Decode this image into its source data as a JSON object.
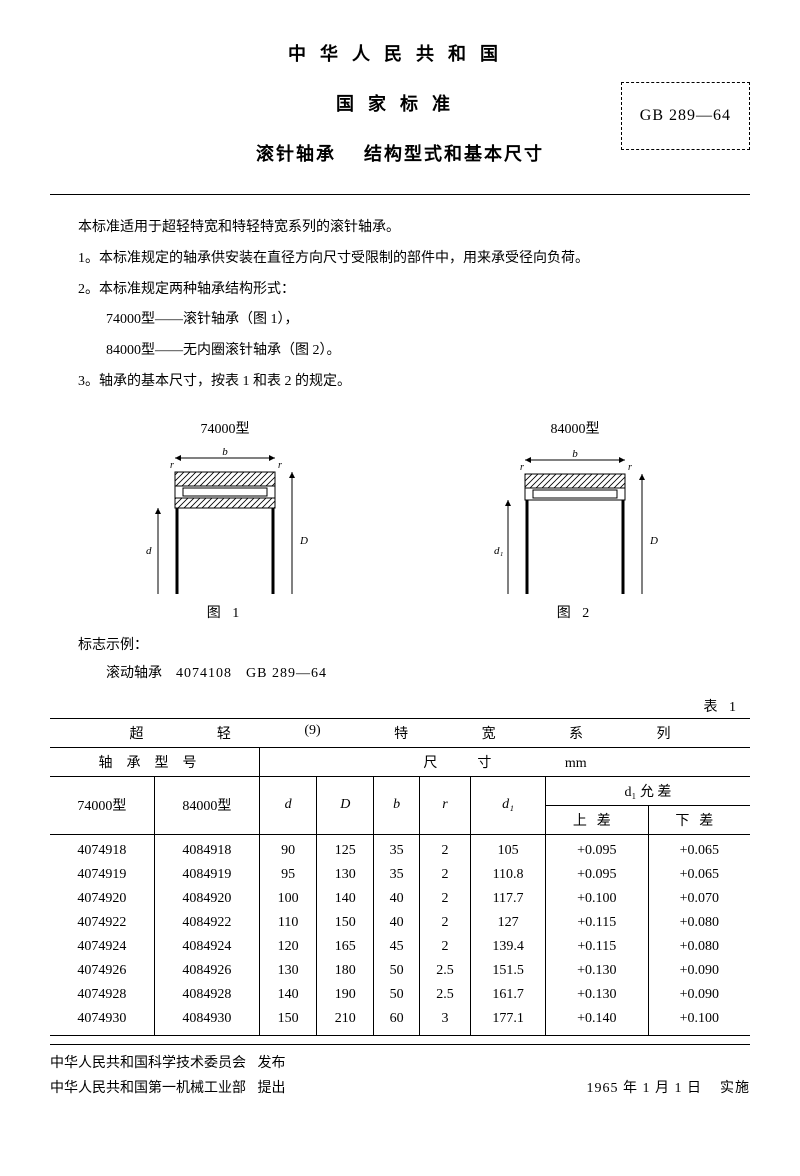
{
  "header": {
    "country": "中华人民共和国",
    "std": "国家标准",
    "title_a": "滚针轴承",
    "title_b": "结构型式和基本尺寸",
    "code": "GB 289—64"
  },
  "intro": {
    "applies": "本标准适用于超轻特宽和特轻特宽系列的滚针轴承。",
    "p1": "1。本标准规定的轴承供安装在直径方向尺寸受限制的部件中，用来承受径向负荷。",
    "p2": "2。本标准规定两种轴承结构形式：",
    "p2a": "74000型——滚针轴承（图 1），",
    "p2b": "84000型——无内圈滚针轴承（图 2）。",
    "p3": "3。轴承的基本尺寸，按表 1 和表 2 的规定。"
  },
  "figures": {
    "left_title": "74000型",
    "right_title": "84000型",
    "left_caption": "图 1",
    "right_caption": "图 2",
    "hatch_color": "#000",
    "line_color": "#000"
  },
  "example": {
    "label": "标志示例：",
    "prefix": "滚动轴承",
    "code": "4074108",
    "std": "GB 289—64"
  },
  "table1": {
    "label": "表 1",
    "super_header_parts": [
      "超",
      "轻",
      "(9)",
      "特",
      "宽",
      "系",
      "列"
    ],
    "col_group_a": "轴承型号",
    "col_group_b": "尺寸",
    "col_group_b_unit": "mm",
    "cols": {
      "t74": "74000型",
      "t84": "84000型",
      "d": "d",
      "D": "D",
      "b": "b",
      "r": "r",
      "d1": "d₁",
      "d1tol": "d₁ 允 差",
      "upper": "上差",
      "lower": "下差"
    },
    "rows": [
      {
        "t74": "4074918",
        "t84": "4084918",
        "d": "90",
        "D": "125",
        "b": "35",
        "r": "2",
        "d1": "105",
        "up": "+0.095",
        "lo": "+0.065"
      },
      {
        "t74": "4074919",
        "t84": "4084919",
        "d": "95",
        "D": "130",
        "b": "35",
        "r": "2",
        "d1": "110.8",
        "up": "+0.095",
        "lo": "+0.065"
      },
      {
        "t74": "4074920",
        "t84": "4084920",
        "d": "100",
        "D": "140",
        "b": "40",
        "r": "2",
        "d1": "117.7",
        "up": "+0.100",
        "lo": "+0.070"
      },
      {
        "t74": "4074922",
        "t84": "4084922",
        "d": "110",
        "D": "150",
        "b": "40",
        "r": "2",
        "d1": "127",
        "up": "+0.115",
        "lo": "+0.080"
      },
      {
        "t74": "4074924",
        "t84": "4084924",
        "d": "120",
        "D": "165",
        "b": "45",
        "r": "2",
        "d1": "139.4",
        "up": "+0.115",
        "lo": "+0.080"
      },
      {
        "t74": "4074926",
        "t84": "4084926",
        "d": "130",
        "D": "180",
        "b": "50",
        "r": "2.5",
        "d1": "151.5",
        "up": "+0.130",
        "lo": "+0.090"
      },
      {
        "t74": "4074928",
        "t84": "4084928",
        "d": "140",
        "D": "190",
        "b": "50",
        "r": "2.5",
        "d1": "161.7",
        "up": "+0.130",
        "lo": "+0.090"
      },
      {
        "t74": "4074930",
        "t84": "4084930",
        "d": "150",
        "D": "210",
        "b": "60",
        "r": "3",
        "d1": "177.1",
        "up": "+0.140",
        "lo": "+0.100"
      }
    ]
  },
  "footer": {
    "org1": "中华人民共和国科学技术委员会",
    "org1_action": "发布",
    "org2": "中华人民共和国第一机械工业部",
    "org2_action": "提出",
    "date": "1965 年 1 月 1 日",
    "date_action": "实施"
  }
}
